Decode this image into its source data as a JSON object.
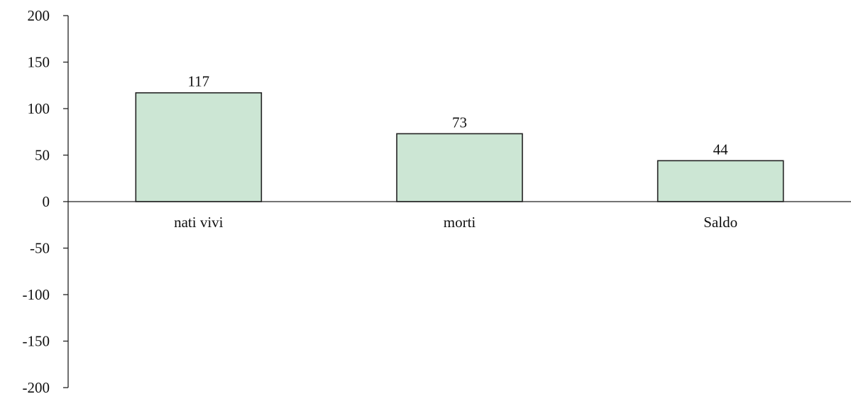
{
  "chart_data": {
    "type": "bar",
    "categories": [
      "nati vivi",
      "morti",
      "Saldo"
    ],
    "values": [
      117,
      73,
      44
    ],
    "data_labels": [
      "117",
      "73",
      "44"
    ],
    "title": "",
    "xlabel": "",
    "ylabel": "",
    "ylim": [
      -200,
      200
    ],
    "yticks": [
      200,
      150,
      100,
      50,
      0,
      -50,
      -100,
      -150,
      -200
    ],
    "ytick_labels": [
      "200",
      "150",
      "100",
      "50",
      "0",
      "-50",
      "-100",
      "-150",
      "-200"
    ],
    "grid": false,
    "legend": "none",
    "bar_color": "#cce6d4",
    "bar_edge_color": "#222222"
  }
}
